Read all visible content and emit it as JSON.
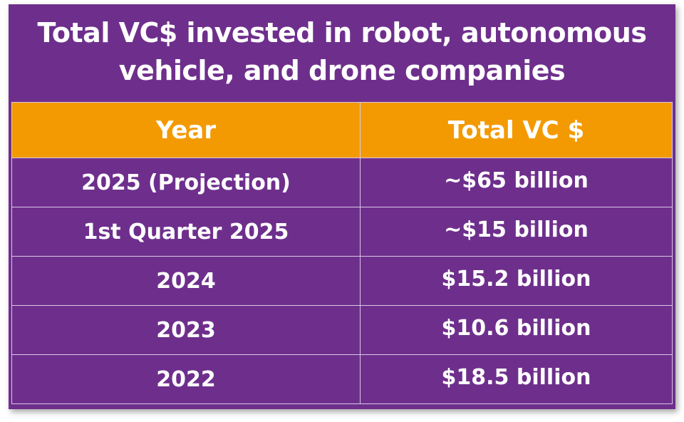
{
  "title": {
    "line1": "Total VC$ invested in robot, autonomous",
    "line2": "vehicle, and drone companies"
  },
  "columns": {
    "year": "Year",
    "total": "Total VC $"
  },
  "rows": [
    {
      "year": "2025 (Projection)",
      "total": "~$65 billion"
    },
    {
      "year": "1st Quarter 2025",
      "total": "~$15 billion"
    },
    {
      "year": "2024",
      "total": "$15.2 billion"
    },
    {
      "year": "2023",
      "total": "$10.6 billion"
    },
    {
      "year": "2022",
      "total": "$18.5 billion"
    }
  ],
  "colors": {
    "background": "#6e2f8c",
    "header": "#f39a02",
    "text": "#ffffff"
  }
}
